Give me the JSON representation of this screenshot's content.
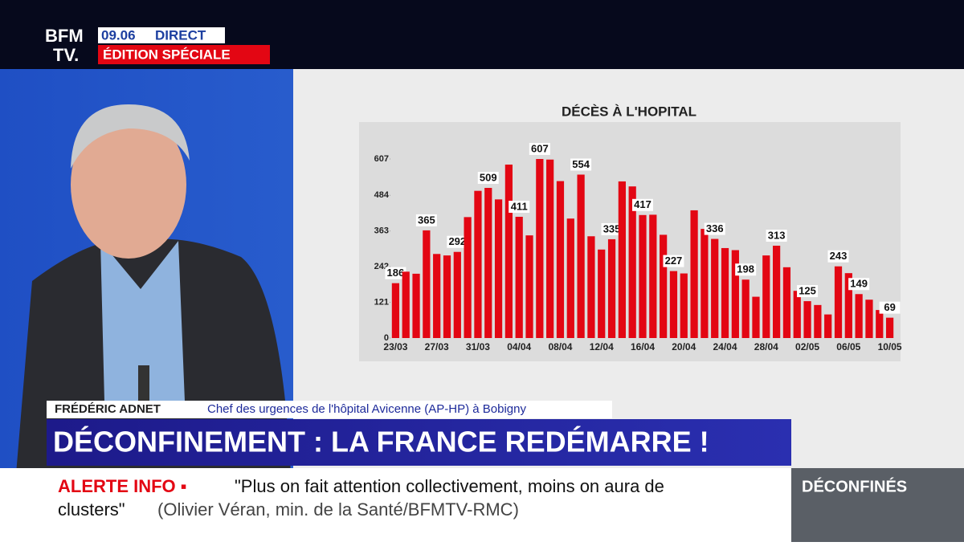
{
  "header": {
    "logo_top": "BFM",
    "logo_bottom": "TV.",
    "time": "09.06",
    "live": "DIRECT",
    "edition": "ÉDITION SPÉCIALE"
  },
  "chart_data": {
    "type": "bar",
    "title": "DÉCÈS À L'HOPITAL",
    "color": "#e30613",
    "categories": [
      "23/03",
      null,
      null,
      null,
      "27/03",
      null,
      null,
      null,
      "31/03",
      null,
      null,
      null,
      "04/04",
      null,
      null,
      null,
      "08/04",
      null,
      null,
      null,
      "12/04",
      null,
      null,
      null,
      "16/04",
      null,
      null,
      null,
      "20/04",
      null,
      null,
      null,
      "24/04",
      null,
      null,
      null,
      "28/04",
      null,
      null,
      null,
      "02/05",
      null,
      null,
      null,
      "06/05",
      null,
      null,
      null,
      "10/05"
    ],
    "values": [
      186,
      225,
      218,
      365,
      285,
      280,
      292,
      410,
      499,
      509,
      470,
      588,
      411,
      348,
      607,
      605,
      532,
      405,
      554,
      345,
      300,
      335,
      531,
      514,
      417,
      418,
      350,
      227,
      219,
      433,
      370,
      336,
      305,
      298,
      198,
      140,
      280,
      313,
      240,
      160,
      125,
      112,
      80,
      243,
      220,
      149,
      130,
      95,
      69
    ],
    "value_labels": [
      "186",
      null,
      null,
      "365",
      null,
      null,
      "292",
      null,
      null,
      "509",
      null,
      null,
      "411",
      null,
      "607",
      null,
      null,
      null,
      "554",
      null,
      null,
      "335",
      null,
      null,
      "417",
      null,
      null,
      "227",
      null,
      null,
      null,
      "336",
      null,
      null,
      "198",
      null,
      null,
      "313",
      null,
      null,
      "125",
      null,
      null,
      "243",
      null,
      "149",
      null,
      null,
      "69"
    ],
    "ylim": [
      0,
      607
    ],
    "yticks": [
      0,
      121,
      242,
      363,
      484,
      607
    ]
  },
  "lower_third": {
    "name": "FRÉDÉRIC ADNET",
    "role": "Chef des urgences de l'hôpital Avicenne (AP-HP) à Bobigny",
    "headline": "DÉCONFINEMENT : LA FRANCE REDÉMARRE !"
  },
  "ticker": {
    "tag": "ALERTE INFO ▪",
    "line1": "\"Plus on fait attention collectivement, moins on aura de",
    "line2_quote": "clusters\"",
    "line2_source": "(Olivier Véran, min. de la Santé/BFMTV-RMC)"
  },
  "side_box": {
    "label": "DÉCONFINÉS"
  }
}
